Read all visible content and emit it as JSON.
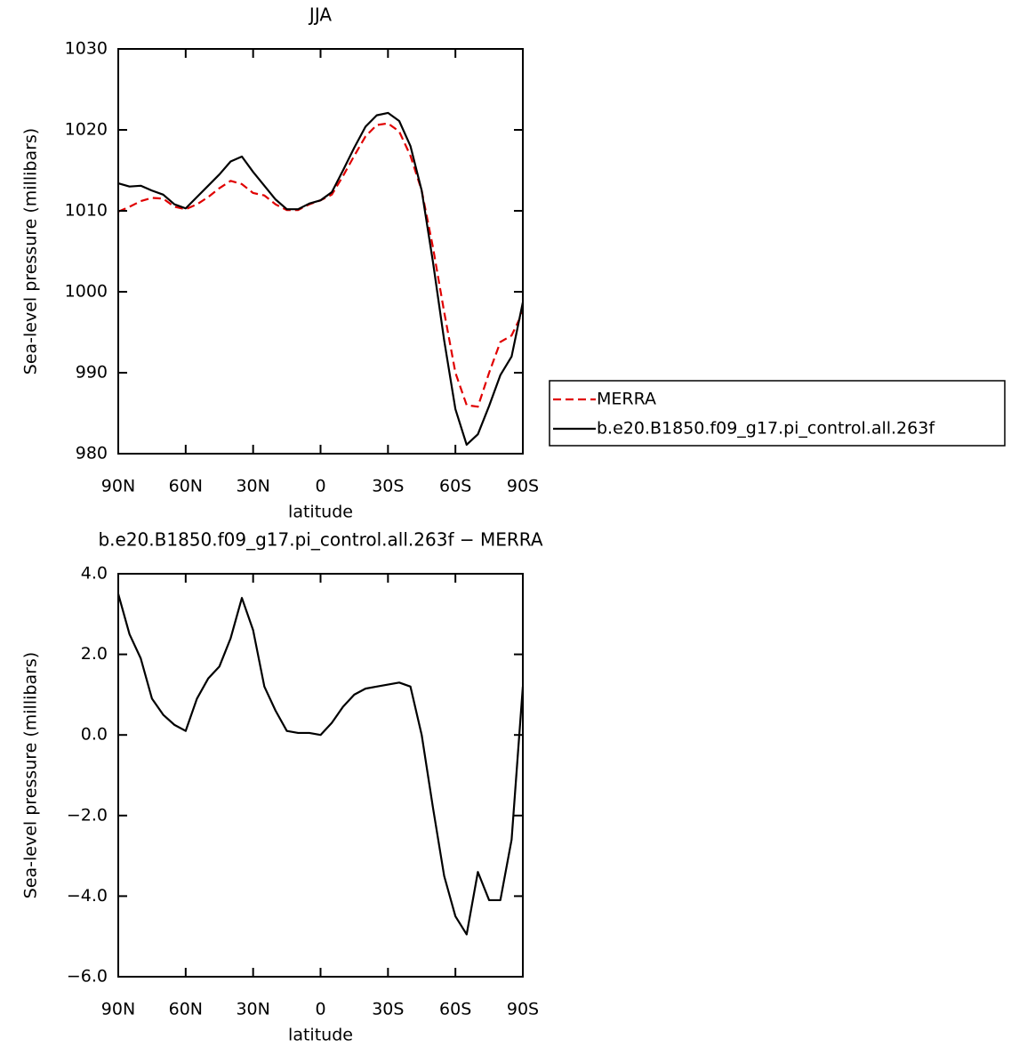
{
  "chart_data": [
    {
      "type": "line",
      "title": "JJA",
      "xlabel": "latitude",
      "ylabel": "Sea-level pressure (millibars)",
      "x": [
        90,
        85,
        80,
        75,
        70,
        65,
        60,
        55,
        50,
        45,
        40,
        35,
        30,
        25,
        20,
        15,
        10,
        5,
        0,
        -5,
        -10,
        -15,
        -20,
        -25,
        -30,
        -35,
        -40,
        -45,
        -50,
        -55,
        -60,
        -65,
        -70,
        -75,
        -80,
        -85,
        -90
      ],
      "xlim": [
        90,
        -90
      ],
      "xticks": [
        {
          "value": 90,
          "label": "90N"
        },
        {
          "value": 60,
          "label": "60N"
        },
        {
          "value": 30,
          "label": "30N"
        },
        0,
        {
          "value": -30,
          "label": "30S"
        },
        {
          "value": -60,
          "label": "60S"
        },
        {
          "value": -90,
          "label": "90S"
        }
      ],
      "ylim": [
        980,
        1030
      ],
      "yticks": [
        980,
        990,
        1000,
        1010,
        1020,
        1030
      ],
      "legend": "right",
      "series": [
        {
          "name": "MERRA",
          "color": "#e00000",
          "dashed": true,
          "values": [
            1009.9,
            1010.5,
            1011.2,
            1011.6,
            1011.5,
            1010.5,
            1010.2,
            1010.8,
            1011.7,
            1012.8,
            1013.7,
            1013.3,
            1012.2,
            1011.9,
            1010.8,
            1010.1,
            1010.1,
            1010.8,
            1011.3,
            1012.0,
            1014.3,
            1016.8,
            1019.2,
            1020.6,
            1020.8,
            1019.8,
            1016.8,
            1012.5,
            1005.5,
            997.5,
            990.0,
            986.0,
            985.8,
            990.0,
            993.8,
            994.6,
            997.5
          ]
        },
        {
          "name": "b.e20.B1850.f09_g17.pi_control.all.263f",
          "color": "#000000",
          "dashed": false,
          "values": [
            1013.4,
            1013.0,
            1013.1,
            1012.5,
            1012.0,
            1010.8,
            1010.3,
            1011.7,
            1013.1,
            1014.5,
            1016.1,
            1016.7,
            1014.8,
            1013.1,
            1011.4,
            1010.2,
            1010.2,
            1010.9,
            1011.3,
            1012.3,
            1015.0,
            1017.8,
            1020.4,
            1021.8,
            1022.1,
            1021.1,
            1018.0,
            1012.5,
            1003.7,
            994.0,
            985.5,
            981.1,
            982.4,
            985.9,
            989.7,
            992.0,
            998.7
          ]
        }
      ]
    },
    {
      "type": "line",
      "title": "b.e20.B1850.f09_g17.pi_control.all.263f − MERRA",
      "xlabel": "latitude",
      "ylabel": "Sea-level pressure (millibars)",
      "x": [
        90,
        85,
        80,
        75,
        70,
        65,
        60,
        55,
        50,
        45,
        40,
        35,
        30,
        25,
        20,
        15,
        10,
        5,
        0,
        -5,
        -10,
        -15,
        -20,
        -25,
        -30,
        -35,
        -40,
        -45,
        -50,
        -55,
        -60,
        -65,
        -70,
        -75,
        -80,
        -85,
        -90
      ],
      "xlim": [
        90,
        -90
      ],
      "xticks": [
        {
          "value": 90,
          "label": "90N"
        },
        {
          "value": 60,
          "label": "60N"
        },
        {
          "value": 30,
          "label": "30N"
        },
        0,
        {
          "value": -30,
          "label": "30S"
        },
        {
          "value": -60,
          "label": "60S"
        },
        {
          "value": -90,
          "label": "90S"
        }
      ],
      "ylim": [
        -6,
        4
      ],
      "yticks": [
        {
          "value": -6,
          "label": "−6.0"
        },
        {
          "value": -4,
          "label": "−4.0"
        },
        {
          "value": -2,
          "label": "−2.0"
        },
        {
          "value": 0,
          "label": "0.0"
        },
        {
          "value": 2,
          "label": "2.0"
        },
        {
          "value": 4,
          "label": "4.0"
        }
      ],
      "series": [
        {
          "color": "#000000",
          "dashed": false,
          "values": [
            3.5,
            2.5,
            1.9,
            0.9,
            0.5,
            0.25,
            0.1,
            0.9,
            1.4,
            1.7,
            2.4,
            3.4,
            2.6,
            1.2,
            0.6,
            0.1,
            0.05,
            0.05,
            0.0,
            0.3,
            0.7,
            1.0,
            1.15,
            1.2,
            1.25,
            1.3,
            1.2,
            0.0,
            -1.8,
            -3.5,
            -4.5,
            -4.95,
            -3.4,
            -4.1,
            -4.1,
            -2.6,
            1.2
          ]
        }
      ]
    }
  ]
}
